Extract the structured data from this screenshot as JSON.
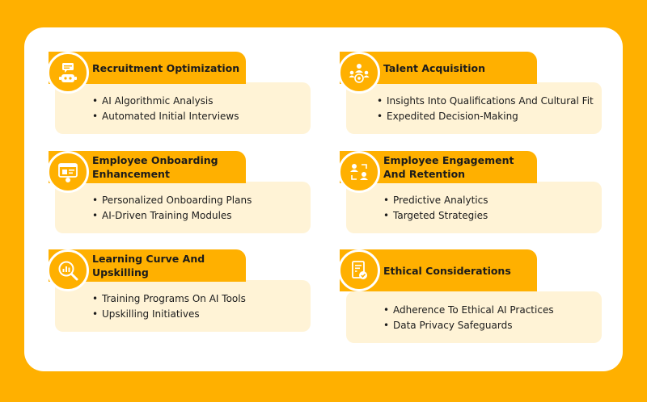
{
  "cards": [
    {
      "title": "Recruitment Optimization",
      "icon": "robot-chat-icon",
      "items": [
        "AI Algorithmic Analysis",
        "Automated Initial Interviews"
      ]
    },
    {
      "title": "Talent Acquisition",
      "icon": "talent-network-icon",
      "items": [
        "Insights Into Qualifications And Cultural Fit",
        "Expedited Decision-Making"
      ]
    },
    {
      "title": "Employee Onboarding Enhancement",
      "icon": "onboarding-screen-icon",
      "items": [
        "Personalized Onboarding Plans",
        "AI-Driven Training Modules"
      ]
    },
    {
      "title": "Employee Engagement And Retention",
      "icon": "people-exchange-icon",
      "items": [
        "Predictive Analytics",
        "Targeted Strategies"
      ]
    },
    {
      "title": "Learning Curve And Upskilling",
      "icon": "magnifier-chart-icon",
      "items": [
        "Training Programs On AI Tools",
        "Upskilling Initiatives"
      ]
    },
    {
      "title": "Ethical Considerations",
      "icon": "ethics-document-icon",
      "items": [
        "Adherence To Ethical AI Practices",
        "Data Privacy Safeguards"
      ]
    }
  ],
  "colors": {
    "accent": "#FFB000",
    "card_body": "#FFF3D6",
    "background": "#FFFFFF"
  }
}
